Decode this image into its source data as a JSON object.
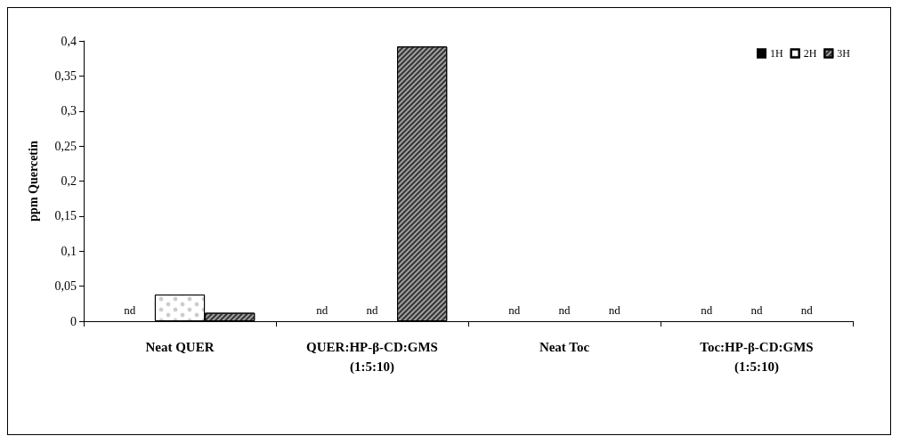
{
  "chart_data": {
    "type": "bar",
    "ylabel": "ppm Quercetin",
    "categories": [
      "Neat QUER",
      "QUER:HP-β-CD:GMS\n(1:5:10)",
      "Neat Toc",
      "Toc:HP-β-CD:GMS\n(1:5:10)"
    ],
    "series": [
      {
        "name": "1H",
        "color": "#000000",
        "values": [
          null,
          null,
          null,
          null
        ],
        "value_labels": [
          "nd",
          "nd",
          "nd",
          "nd"
        ]
      },
      {
        "name": "2H",
        "color": "#ffffff",
        "values": [
          0.038,
          null,
          null,
          null
        ],
        "value_labels": [
          null,
          "nd",
          "nd",
          "nd"
        ]
      },
      {
        "name": "3H",
        "color": "#a0a0a0",
        "values": [
          0.012,
          0.392,
          null,
          null
        ],
        "value_labels": [
          null,
          null,
          "nd",
          "nd"
        ]
      }
    ],
    "ylim": [
      0,
      0.4
    ],
    "yticks": [
      0,
      {
        "value": 0.05,
        "label": "0,05"
      },
      {
        "value": 0.1,
        "label": "0,1"
      },
      {
        "value": 0.15,
        "label": "0,15"
      },
      {
        "value": 0.2,
        "label": "0,2"
      },
      {
        "value": 0.25,
        "label": "0,25"
      },
      {
        "value": 0.3,
        "label": "0,3"
      },
      {
        "value": 0.35,
        "label": "0,35"
      },
      {
        "value": 0.4,
        "label": "0,4"
      }
    ],
    "grid": false,
    "legend": "top right"
  }
}
